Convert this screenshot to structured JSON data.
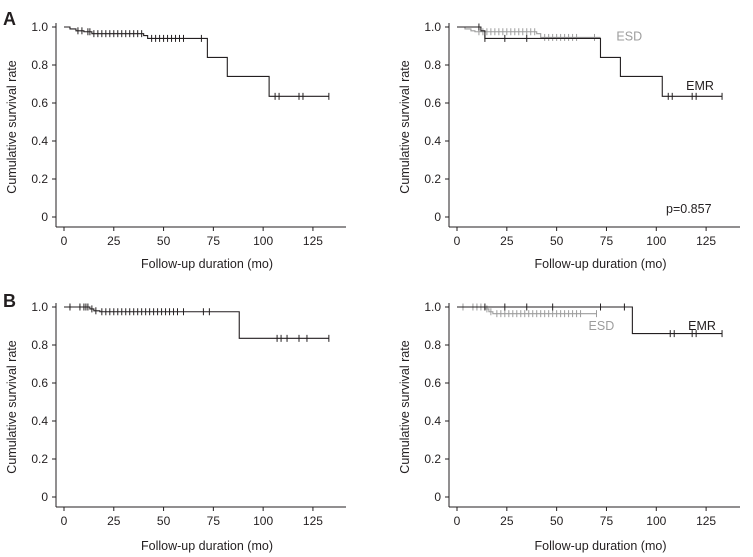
{
  "panel_labels": [
    "A",
    "B"
  ],
  "chart_data": [
    {
      "type": "line",
      "subtype": "kaplan-meier",
      "panel": "A",
      "xlabel": "Follow-up duration (mo)",
      "ylabel": "Cumulative survival rate",
      "xlim": [
        0,
        140
      ],
      "ylim": [
        0,
        1.0
      ],
      "xticks": [
        0,
        25,
        50,
        75,
        100,
        125
      ],
      "yticks": [
        0,
        0.2,
        0.4,
        0.6,
        0.8,
        1.0
      ],
      "ytick_labels": [
        "0",
        "0.2",
        "0.4",
        "0.6",
        "0.8",
        "1.0"
      ],
      "grid": false,
      "series": [
        {
          "color": "#231f20",
          "steps": [
            [
              0,
              1.0
            ],
            [
              3,
              0.99
            ],
            [
              6,
              0.98
            ],
            [
              10,
              0.975
            ],
            [
              14,
              0.965
            ],
            [
              40,
              0.955
            ],
            [
              42,
              0.94
            ],
            [
              72,
              0.84
            ],
            [
              82,
              0.74
            ],
            [
              103,
              0.635
            ],
            [
              133,
              0.635
            ]
          ],
          "censored": [
            [
              7,
              0.98
            ],
            [
              9,
              0.98
            ],
            [
              12,
              0.975
            ],
            [
              13,
              0.975
            ],
            [
              15,
              0.965
            ],
            [
              17,
              0.965
            ],
            [
              19,
              0.965
            ],
            [
              21,
              0.965
            ],
            [
              23,
              0.965
            ],
            [
              25,
              0.965
            ],
            [
              27,
              0.965
            ],
            [
              29,
              0.965
            ],
            [
              31,
              0.965
            ],
            [
              33,
              0.965
            ],
            [
              35,
              0.965
            ],
            [
              37,
              0.965
            ],
            [
              39,
              0.965
            ],
            [
              44,
              0.94
            ],
            [
              46,
              0.94
            ],
            [
              48,
              0.94
            ],
            [
              50,
              0.94
            ],
            [
              52,
              0.94
            ],
            [
              54,
              0.94
            ],
            [
              56,
              0.94
            ],
            [
              58,
              0.94
            ],
            [
              60,
              0.94
            ],
            [
              69,
              0.94
            ],
            [
              106,
              0.635
            ],
            [
              108,
              0.635
            ],
            [
              118,
              0.635
            ],
            [
              120,
              0.635
            ],
            [
              133,
              0.635
            ]
          ]
        }
      ]
    },
    {
      "type": "line",
      "subtype": "kaplan-meier",
      "panel": "A",
      "xlabel": "Follow-up duration (mo)",
      "ylabel": "Cumulative survival rate",
      "xlim": [
        0,
        140
      ],
      "ylim": [
        0,
        1.0
      ],
      "xticks": [
        0,
        25,
        50,
        75,
        100,
        125
      ],
      "yticks": [
        0,
        0.2,
        0.4,
        0.6,
        0.8,
        1.0
      ],
      "ytick_labels": [
        "0",
        "0.2",
        "0.4",
        "0.6",
        "0.8",
        "1.0"
      ],
      "grid": false,
      "annotation": "p=0.857",
      "series": [
        {
          "name": "ESD",
          "color": "#9d9d9d",
          "label_at": [
            80,
            0.95
          ],
          "steps": [
            [
              0,
              1.0
            ],
            [
              4,
              0.99
            ],
            [
              7,
              0.98
            ],
            [
              9,
              0.975
            ],
            [
              40,
              0.965
            ],
            [
              42,
              0.945
            ],
            [
              72,
              0.945
            ]
          ],
          "censored": [
            [
              11,
              0.975
            ],
            [
              13,
              0.975
            ],
            [
              15,
              0.975
            ],
            [
              17,
              0.975
            ],
            [
              19,
              0.975
            ],
            [
              21,
              0.975
            ],
            [
              23,
              0.975
            ],
            [
              25,
              0.975
            ],
            [
              27,
              0.975
            ],
            [
              29,
              0.975
            ],
            [
              31,
              0.975
            ],
            [
              33,
              0.975
            ],
            [
              35,
              0.975
            ],
            [
              37,
              0.975
            ],
            [
              39,
              0.975
            ],
            [
              44,
              0.945
            ],
            [
              46,
              0.945
            ],
            [
              48,
              0.945
            ],
            [
              50,
              0.945
            ],
            [
              52,
              0.945
            ],
            [
              54,
              0.945
            ],
            [
              56,
              0.945
            ],
            [
              58,
              0.945
            ],
            [
              60,
              0.945
            ],
            [
              69,
              0.945
            ]
          ]
        },
        {
          "name": "EMR",
          "color": "#231f20",
          "label_at": [
            115,
            0.69
          ],
          "steps": [
            [
              0,
              1.0
            ],
            [
              12,
              0.98
            ],
            [
              14,
              0.94
            ],
            [
              72,
              0.84
            ],
            [
              82,
              0.74
            ],
            [
              103,
              0.635
            ],
            [
              133,
              0.635
            ]
          ],
          "censored": [
            [
              11,
              1.0
            ],
            [
              14,
              0.94
            ],
            [
              24,
              0.94
            ],
            [
              35,
              0.94
            ],
            [
              106,
              0.635
            ],
            [
              108,
              0.635
            ],
            [
              118,
              0.635
            ],
            [
              120,
              0.635
            ],
            [
              133,
              0.635
            ]
          ]
        }
      ]
    },
    {
      "type": "line",
      "subtype": "kaplan-meier",
      "panel": "B",
      "xlabel": "Follow-up duration (mo)",
      "ylabel": "Cumulative survival rate",
      "xlim": [
        0,
        140
      ],
      "ylim": [
        0,
        1.0
      ],
      "xticks": [
        0,
        25,
        50,
        75,
        100,
        125
      ],
      "yticks": [
        0,
        0.2,
        0.4,
        0.6,
        0.8,
        1.0
      ],
      "ytick_labels": [
        "0",
        "0.2",
        "0.4",
        "0.6",
        "0.8",
        "1.0"
      ],
      "grid": false,
      "series": [
        {
          "color": "#231f20",
          "steps": [
            [
              0,
              1.0
            ],
            [
              13,
              0.99
            ],
            [
              15,
              0.98
            ],
            [
              18,
              0.975
            ],
            [
              88,
              0.835
            ],
            [
              133,
              0.835
            ]
          ],
          "censored": [
            [
              3,
              1.0
            ],
            [
              8,
              1.0
            ],
            [
              10,
              1.0
            ],
            [
              11,
              1.0
            ],
            [
              12,
              1.0
            ],
            [
              14,
              0.99
            ],
            [
              16,
              0.98
            ],
            [
              19,
              0.975
            ],
            [
              21,
              0.975
            ],
            [
              23,
              0.975
            ],
            [
              25,
              0.975
            ],
            [
              27,
              0.975
            ],
            [
              29,
              0.975
            ],
            [
              31,
              0.975
            ],
            [
              33,
              0.975
            ],
            [
              35,
              0.975
            ],
            [
              37,
              0.975
            ],
            [
              39,
              0.975
            ],
            [
              41,
              0.975
            ],
            [
              43,
              0.975
            ],
            [
              45,
              0.975
            ],
            [
              47,
              0.975
            ],
            [
              49,
              0.975
            ],
            [
              51,
              0.975
            ],
            [
              53,
              0.975
            ],
            [
              55,
              0.975
            ],
            [
              57,
              0.975
            ],
            [
              60,
              0.975
            ],
            [
              70,
              0.975
            ],
            [
              73,
              0.975
            ],
            [
              107,
              0.835
            ],
            [
              109,
              0.835
            ],
            [
              112,
              0.835
            ],
            [
              118,
              0.835
            ],
            [
              122,
              0.835
            ],
            [
              133,
              0.835
            ]
          ]
        }
      ]
    },
    {
      "type": "line",
      "subtype": "kaplan-meier",
      "panel": "B",
      "xlabel": "Follow-up duration (mo)",
      "ylabel": "Cumulative survival rate",
      "xlim": [
        0,
        140
      ],
      "ylim": [
        0,
        1.0
      ],
      "xticks": [
        0,
        25,
        50,
        75,
        100,
        125
      ],
      "yticks": [
        0,
        0.2,
        0.4,
        0.6,
        0.8,
        1.0
      ],
      "ytick_labels": [
        "0",
        "0.2",
        "0.4",
        "0.6",
        "0.8",
        "1.0"
      ],
      "grid": false,
      "series": [
        {
          "name": "ESD",
          "color": "#9d9d9d",
          "label_at": [
            66,
            0.9
          ],
          "steps": [
            [
              0,
              1.0
            ],
            [
              14,
              0.99
            ],
            [
              16,
              0.975
            ],
            [
              18,
              0.965
            ],
            [
              70,
              0.965
            ]
          ],
          "censored": [
            [
              3,
              1.0
            ],
            [
              8,
              1.0
            ],
            [
              10,
              1.0
            ],
            [
              12,
              1.0
            ],
            [
              15,
              0.99
            ],
            [
              17,
              0.975
            ],
            [
              20,
              0.965
            ],
            [
              22,
              0.965
            ],
            [
              24,
              0.965
            ],
            [
              26,
              0.965
            ],
            [
              28,
              0.965
            ],
            [
              30,
              0.965
            ],
            [
              32,
              0.965
            ],
            [
              34,
              0.965
            ],
            [
              36,
              0.965
            ],
            [
              38,
              0.965
            ],
            [
              40,
              0.965
            ],
            [
              42,
              0.965
            ],
            [
              44,
              0.965
            ],
            [
              46,
              0.965
            ],
            [
              48,
              0.965
            ],
            [
              50,
              0.965
            ],
            [
              52,
              0.965
            ],
            [
              54,
              0.965
            ],
            [
              56,
              0.965
            ],
            [
              58,
              0.965
            ],
            [
              60,
              0.965
            ],
            [
              62,
              0.965
            ],
            [
              70,
              0.965
            ]
          ]
        },
        {
          "name": "EMR",
          "color": "#231f20",
          "label_at": [
            116,
            0.9
          ],
          "steps": [
            [
              0,
              1.0
            ],
            [
              88,
              0.86
            ],
            [
              133,
              0.86
            ]
          ],
          "censored": [
            [
              14,
              1.0
            ],
            [
              24,
              1.0
            ],
            [
              35,
              1.0
            ],
            [
              48,
              1.0
            ],
            [
              72,
              1.0
            ],
            [
              84,
              1.0
            ],
            [
              107,
              0.86
            ],
            [
              109,
              0.86
            ],
            [
              118,
              0.86
            ],
            [
              120,
              0.86
            ],
            [
              133,
              0.86
            ]
          ]
        }
      ]
    }
  ]
}
